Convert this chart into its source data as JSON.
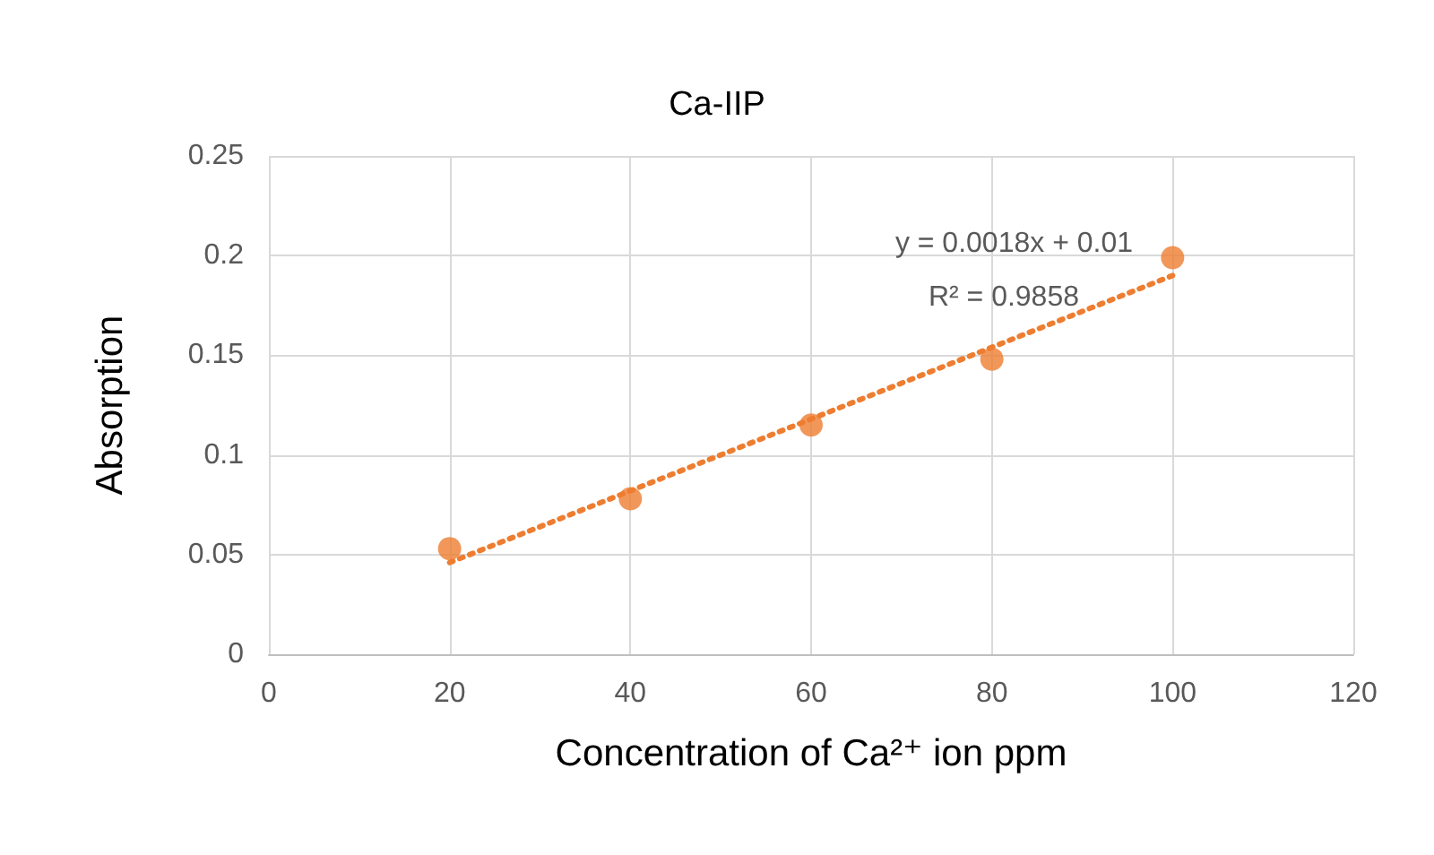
{
  "chart_data": {
    "type": "scatter",
    "title": "Ca-IIP",
    "xlabel": "Concentration of Ca²⁺ ion ppm",
    "ylabel": "Absorption",
    "xlim": [
      0,
      120
    ],
    "xticks": [
      0,
      20,
      40,
      60,
      80,
      100,
      120
    ],
    "ylim": [
      0,
      0.25
    ],
    "yticks": [
      0,
      0.05,
      0.1,
      0.15,
      0.2,
      0.25
    ],
    "grid": true,
    "marker": "circle",
    "series": [
      {
        "color": "#ed7d31",
        "x": [
          20,
          40,
          60,
          80,
          100
        ],
        "values": [
          0.053,
          0.078,
          0.115,
          0.148,
          0.199
        ]
      },
      {
        "type": "line",
        "color": "#ed7d31",
        "x": [
          20,
          100
        ],
        "values": [
          0.046,
          0.19
        ],
        "line_style": "dotted",
        "marker": "none"
      }
    ],
    "annotations": [
      "y = 0.0018x + 0.01",
      "R² = 0.9858"
    ]
  }
}
